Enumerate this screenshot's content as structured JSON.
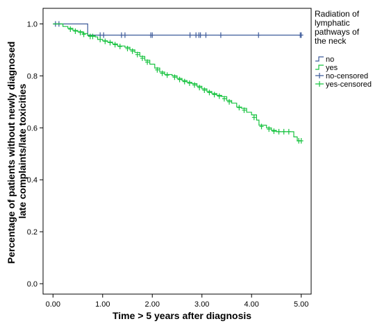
{
  "chart_data": {
    "type": "line",
    "subtype": "kaplan-meier",
    "title": "",
    "xlabel": "Time > 5 years after diagnosis",
    "ylabel_lines": [
      "Percentage of patients without newly diagnosed",
      "late complaints/late toxicities"
    ],
    "xlim": [
      -0.2,
      5.2
    ],
    "ylim": [
      -0.04,
      1.06
    ],
    "xticks": [
      0.0,
      1.0,
      2.0,
      3.0,
      4.0,
      5.0
    ],
    "xtick_labels": [
      "0.00",
      "1.00",
      "2.00",
      "3.00",
      "4.00",
      "5.00"
    ],
    "yticks": [
      0.0,
      0.2,
      0.4,
      0.6,
      0.8,
      1.0
    ],
    "ytick_labels": [
      "0.0",
      "0.2",
      "0.4",
      "0.6",
      "0.8",
      "1.0"
    ],
    "grid": false,
    "legend": {
      "title_lines": [
        "Radiation of",
        "lymphatic",
        "pathways of",
        "the neck"
      ],
      "position": "outside-right-top",
      "entries": [
        {
          "label": "no",
          "series": "no",
          "kind": "step"
        },
        {
          "label": "yes",
          "series": "yes",
          "kind": "step"
        },
        {
          "label": "no-censored",
          "series": "no",
          "kind": "censor"
        },
        {
          "label": "yes-censored",
          "series": "yes",
          "kind": "censor"
        }
      ]
    },
    "series": [
      {
        "name": "no",
        "color": "#3c5a9a",
        "steps": [
          [
            0.0,
            1.0
          ],
          [
            0.7,
            0.957
          ],
          [
            5.0,
            0.957
          ]
        ],
        "censored": [
          [
            0.05,
            1.0
          ],
          [
            0.12,
            1.0
          ],
          [
            0.95,
            0.957
          ],
          [
            1.02,
            0.957
          ],
          [
            1.38,
            0.957
          ],
          [
            1.45,
            0.957
          ],
          [
            1.97,
            0.957
          ],
          [
            2.0,
            0.957
          ],
          [
            2.76,
            0.957
          ],
          [
            2.88,
            0.957
          ],
          [
            2.94,
            0.957
          ],
          [
            2.97,
            0.957
          ],
          [
            3.08,
            0.957
          ],
          [
            3.38,
            0.957
          ],
          [
            4.14,
            0.957
          ],
          [
            4.98,
            0.957
          ],
          [
            5.0,
            0.957
          ]
        ]
      },
      {
        "name": "yes",
        "color": "#18c340",
        "steps": [
          [
            0.0,
            1.0
          ],
          [
            0.2,
            0.99
          ],
          [
            0.3,
            0.983
          ],
          [
            0.4,
            0.975
          ],
          [
            0.5,
            0.97
          ],
          [
            0.6,
            0.963
          ],
          [
            0.7,
            0.955
          ],
          [
            0.85,
            0.95
          ],
          [
            0.9,
            0.94
          ],
          [
            1.0,
            0.935
          ],
          [
            1.1,
            0.93
          ],
          [
            1.2,
            0.923
          ],
          [
            1.3,
            0.915
          ],
          [
            1.45,
            0.91
          ],
          [
            1.55,
            0.9
          ],
          [
            1.65,
            0.89
          ],
          [
            1.75,
            0.875
          ],
          [
            1.85,
            0.86
          ],
          [
            1.95,
            0.845
          ],
          [
            2.05,
            0.83
          ],
          [
            2.15,
            0.815
          ],
          [
            2.25,
            0.805
          ],
          [
            2.4,
            0.8
          ],
          [
            2.5,
            0.79
          ],
          [
            2.6,
            0.782
          ],
          [
            2.7,
            0.775
          ],
          [
            2.8,
            0.77
          ],
          [
            2.9,
            0.76
          ],
          [
            3.0,
            0.75
          ],
          [
            3.1,
            0.74
          ],
          [
            3.2,
            0.732
          ],
          [
            3.3,
            0.725
          ],
          [
            3.4,
            0.72
          ],
          [
            3.5,
            0.705
          ],
          [
            3.6,
            0.695
          ],
          [
            3.7,
            0.68
          ],
          [
            3.8,
            0.675
          ],
          [
            3.9,
            0.66
          ],
          [
            4.0,
            0.65
          ],
          [
            4.1,
            0.63
          ],
          [
            4.15,
            0.61
          ],
          [
            4.3,
            0.6
          ],
          [
            4.4,
            0.59
          ],
          [
            4.5,
            0.585
          ],
          [
            4.85,
            0.565
          ],
          [
            4.92,
            0.55
          ],
          [
            5.0,
            0.55
          ]
        ],
        "censored": [
          [
            0.35,
            0.98
          ],
          [
            0.45,
            0.972
          ],
          [
            0.55,
            0.967
          ],
          [
            0.62,
            0.96
          ],
          [
            0.75,
            0.952
          ],
          [
            0.8,
            0.952
          ],
          [
            0.95,
            0.94
          ],
          [
            1.05,
            0.933
          ],
          [
            1.15,
            0.928
          ],
          [
            1.25,
            0.92
          ],
          [
            1.35,
            0.913
          ],
          [
            1.5,
            0.905
          ],
          [
            1.6,
            0.895
          ],
          [
            1.7,
            0.882
          ],
          [
            1.8,
            0.868
          ],
          [
            1.9,
            0.853
          ],
          [
            2.1,
            0.823
          ],
          [
            2.2,
            0.81
          ],
          [
            2.3,
            0.803
          ],
          [
            2.45,
            0.795
          ],
          [
            2.55,
            0.786
          ],
          [
            2.65,
            0.778
          ],
          [
            2.75,
            0.772
          ],
          [
            2.85,
            0.765
          ],
          [
            2.95,
            0.755
          ],
          [
            3.05,
            0.745
          ],
          [
            3.15,
            0.736
          ],
          [
            3.25,
            0.728
          ],
          [
            3.35,
            0.722
          ],
          [
            3.45,
            0.712
          ],
          [
            3.55,
            0.7
          ],
          [
            3.75,
            0.678
          ],
          [
            3.85,
            0.668
          ],
          [
            4.05,
            0.64
          ],
          [
            4.2,
            0.605
          ],
          [
            4.35,
            0.595
          ],
          [
            4.45,
            0.587
          ],
          [
            4.55,
            0.585
          ],
          [
            4.65,
            0.585
          ],
          [
            4.75,
            0.585
          ],
          [
            4.95,
            0.55
          ],
          [
            5.0,
            0.55
          ]
        ]
      }
    ]
  }
}
